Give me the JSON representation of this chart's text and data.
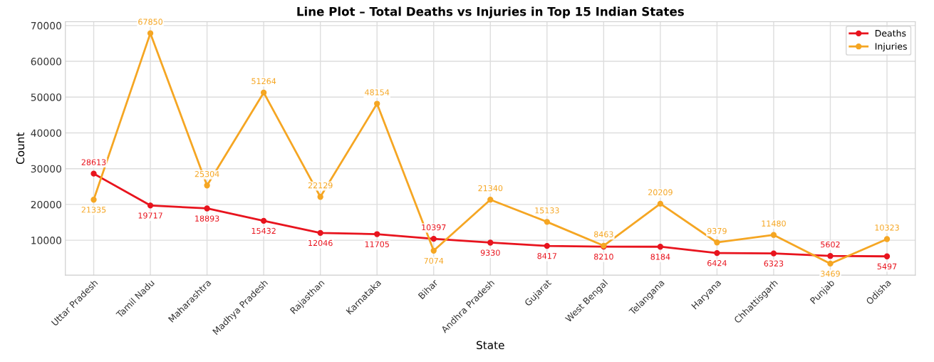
{
  "chart_data": {
    "type": "line",
    "title": "Line Plot – Total Deaths vs Injuries in Top 15 Indian States",
    "xlabel": "State",
    "ylabel": "Count",
    "categories": [
      "Uttar Pradesh",
      "Tamil Nadu",
      "Maharashtra",
      "Madhya Pradesh",
      "Rajasthan",
      "Karnataka",
      "Bihar",
      "Andhra Pradesh",
      "Gujarat",
      "West Bengal",
      "Telangana",
      "Haryana",
      "Chhattisgarh",
      "Punjab",
      "Odisha"
    ],
    "series": [
      {
        "name": "Deaths",
        "color": "#e8141e",
        "values": [
          28613,
          19717,
          18893,
          15432,
          12046,
          11705,
          10397,
          9330,
          8417,
          8210,
          8184,
          6424,
          6323,
          5602,
          5497
        ]
      },
      {
        "name": "Injuries",
        "color": "#f5a623",
        "values": [
          21335,
          67850,
          25304,
          51264,
          22129,
          48154,
          7074,
          21340,
          15133,
          8463,
          20209,
          9379,
          11480,
          3469,
          10323
        ]
      }
    ],
    "ylim": [
      250,
      71070
    ],
    "yticks": [
      10000,
      20000,
      30000,
      40000,
      50000,
      60000,
      70000
    ],
    "data_labels": true,
    "grid": true,
    "legend": "top right",
    "marker": "circle",
    "line_style": "solid"
  }
}
